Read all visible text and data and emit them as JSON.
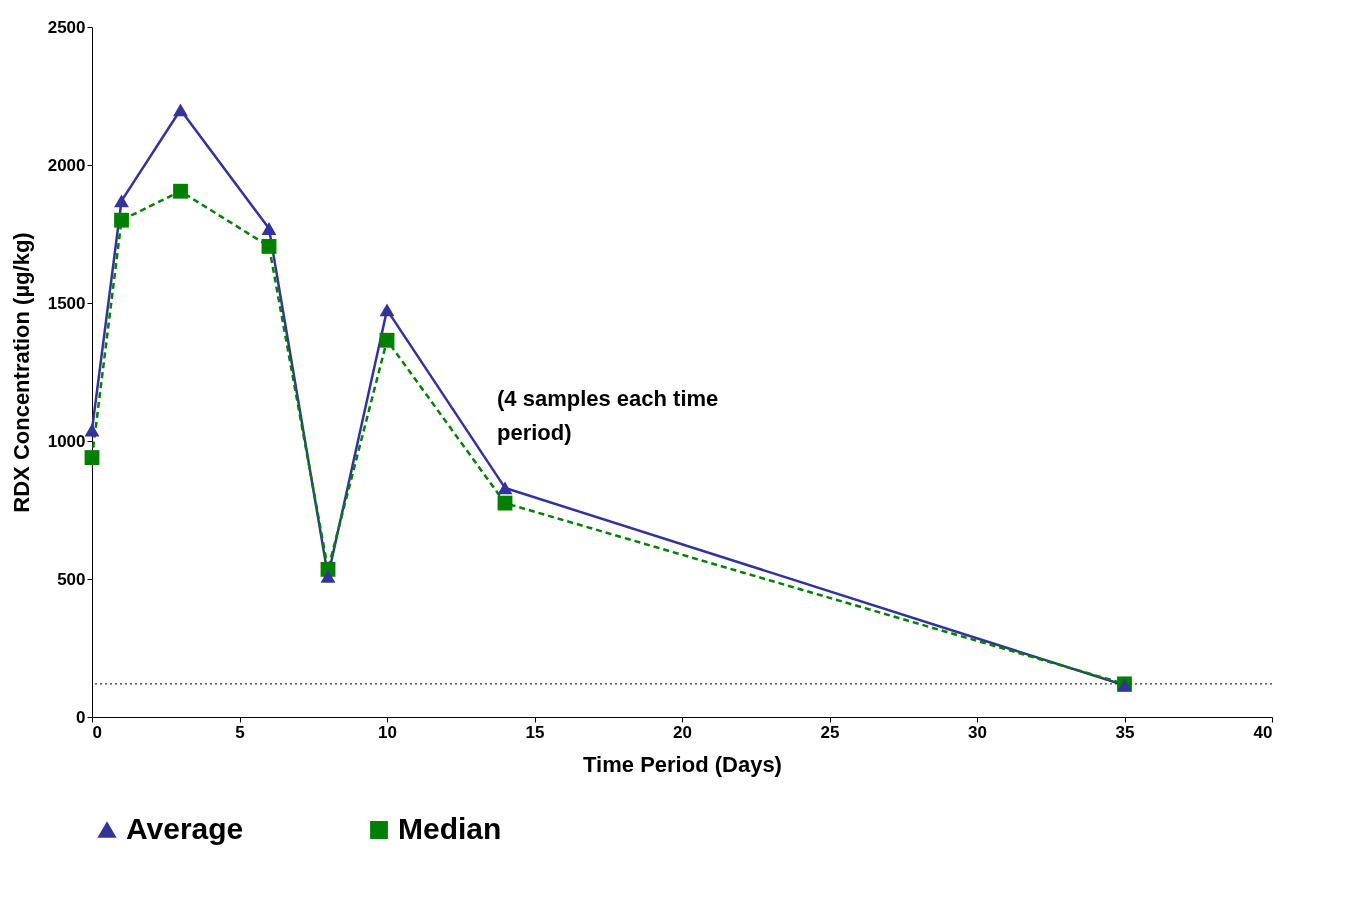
{
  "chart_data": {
    "type": "line",
    "xlabel": "Time Period (Days)",
    "ylabel": "RDX Concentration (µg/kg)",
    "xlim": [
      0,
      40
    ],
    "xticks": [
      0,
      5,
      10,
      15,
      20,
      25,
      30,
      35,
      40
    ],
    "ylim": [
      0,
      2500
    ],
    "yticks": [
      0,
      500,
      1000,
      1500,
      2000,
      2500
    ],
    "grid": false,
    "legend": "bottom",
    "x": [
      0,
      1,
      3,
      6,
      8,
      10,
      14,
      35
    ],
    "series": [
      {
        "name": "Average",
        "color": "#333399",
        "marker": "triangle",
        "line_style": "solid",
        "values": [
          1040,
          1870,
          2200,
          1770,
          510,
          1475,
          830,
          115
        ]
      },
      {
        "name": "Median",
        "color": "#008000",
        "marker": "square",
        "line_style": "dashed",
        "values": [
          940,
          1800,
          1905,
          1705,
          535,
          1365,
          775,
          120
        ]
      }
    ],
    "ref_lines": [
      {
        "axis": "y",
        "value": 120,
        "label": null,
        "color": "#000000",
        "line_style": "dotted"
      }
    ],
    "annotations": [
      "(4 samples each time period)"
    ]
  }
}
